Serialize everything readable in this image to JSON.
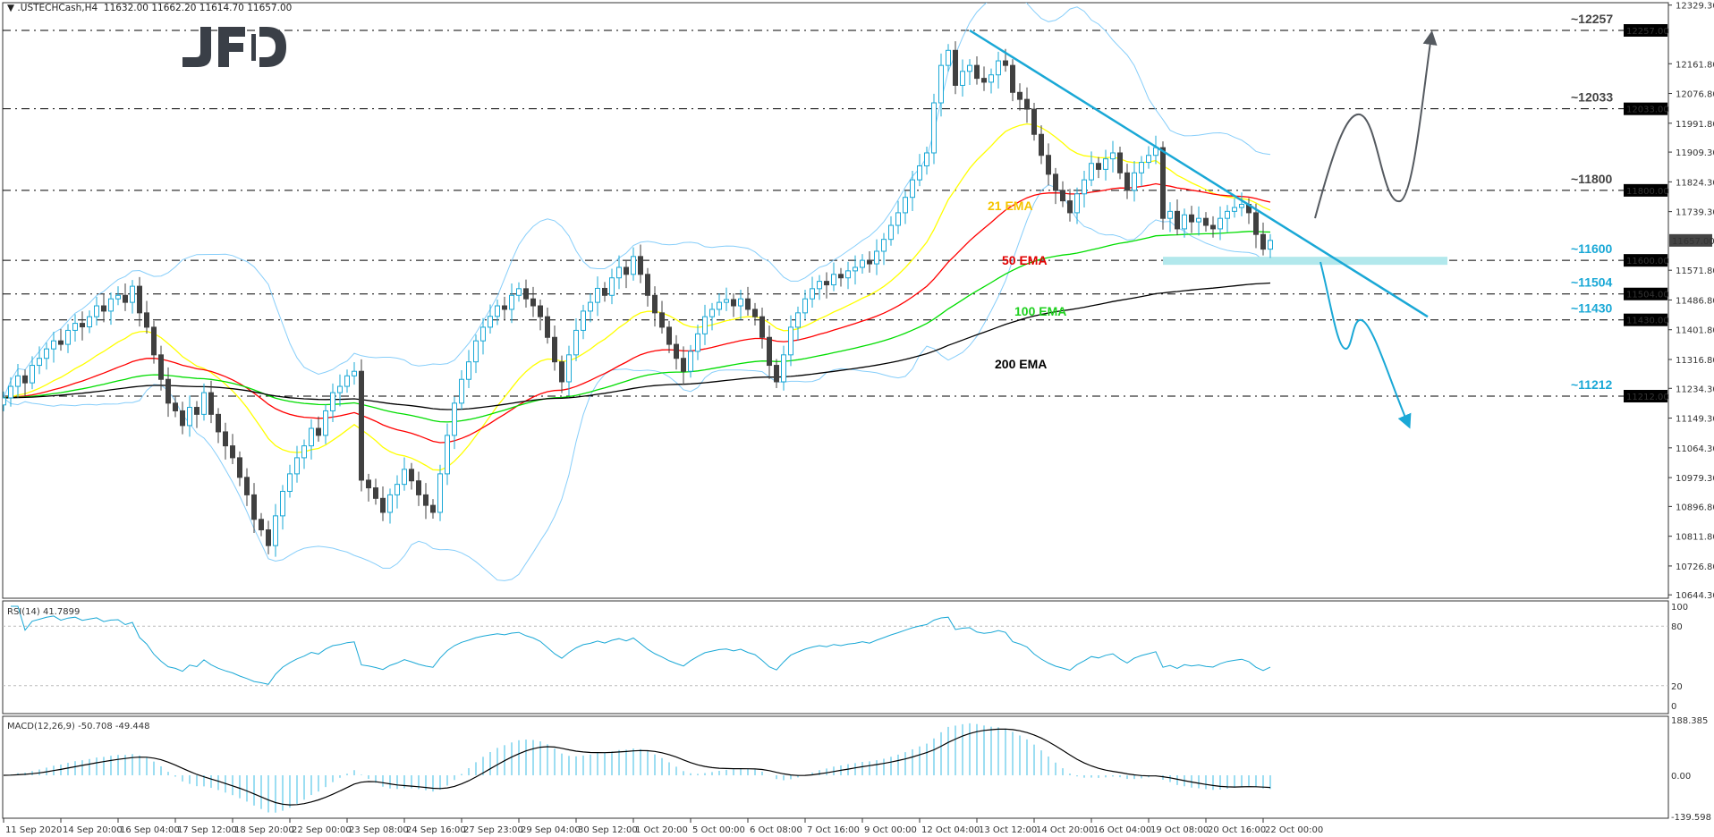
{
  "header": {
    "dropdown_icon": "triangle-down-icon",
    "symbol": ".USTECHCash,H4",
    "ohlc": "11632.00 11662.20 11614.70 11657.00"
  },
  "logo": {
    "text": "JFD",
    "color": "#3a3f47"
  },
  "colors": {
    "bull_stroke": "#1aa8d6",
    "bear_fill": "#404040",
    "bollinger": "#87cefa",
    "ema21": "#ffff00",
    "ema50": "#ff0000",
    "ema100": "#00dd00",
    "ema200": "#000000",
    "trendline": "#1aa8d6",
    "support_zone": "#b2e8ec",
    "level_line": "#000000",
    "up_scenario": "#555a60",
    "down_scenario": "#1aa8d6"
  },
  "chart_data": {
    "type": "candlestick",
    "timeframe": "H4",
    "x_tick_labels": [
      "11 Sep 2020",
      "14 Sep 20:00",
      "16 Sep 04:00",
      "17 Sep 12:00",
      "18 Sep 20:00",
      "22 Sep 00:00",
      "23 Sep 08:00",
      "24 Sep 16:00",
      "27 Sep 23:00",
      "29 Sep 04:00",
      "30 Sep 12:00",
      "1 Oct 20:00",
      "5 Oct 00:00",
      "6 Oct 08:00",
      "7 Oct 16:00",
      "9 Oct 00:00",
      "12 Oct 04:00",
      "13 Oct 12:00",
      "14 Oct 20:00",
      "16 Oct 04:00",
      "19 Oct 08:00",
      "20 Oct 16:00",
      "22 Oct 00:00"
    ],
    "price_axis_ticks": [
      "12329.30",
      "12161.80",
      "12076.80",
      "11991.80",
      "11909.30",
      "11824.30",
      "11739.30",
      "11571.80",
      "11486.80",
      "11401.80",
      "11316.80",
      "11234.30",
      "11149.30",
      "11064.30",
      "10979.30",
      "10896.80",
      "10811.80",
      "10726.80",
      "10644.30"
    ],
    "ylim": [
      10644.3,
      12329.3
    ],
    "closes": [
      11207,
      11240,
      11270,
      11250,
      11300,
      11320,
      11347,
      11370,
      11360,
      11400,
      11420,
      11410,
      11439,
      11470,
      11455,
      11490,
      11500,
      11480,
      11526,
      11450,
      11409,
      11330,
      11260,
      11192,
      11170,
      11128,
      11180,
      11160,
      11222,
      11160,
      11110,
      11070,
      11036,
      10980,
      10930,
      10860,
      10830,
      10785,
      10870,
      10940,
      10990,
      11036,
      11070,
      11120,
      11100,
      11170,
      11222,
      11240,
      11270,
      11283,
      10972,
      10950,
      10920,
      10880,
      10930,
      10960,
      11003,
      10970,
      10930,
      10900,
      10880,
      10990,
      11100,
      11192,
      11260,
      11310,
      11370,
      11409,
      11440,
      11470,
      11460,
      11500,
      11519,
      11490,
      11470,
      11439,
      11380,
      11310,
      11253,
      11330,
      11400,
      11455,
      11480,
      11520,
      11500,
      11550,
      11580,
      11560,
      11611,
      11560,
      11500,
      11450,
      11409,
      11360,
      11320,
      11283,
      11340,
      11390,
      11439,
      11460,
      11480,
      11488,
      11470,
      11490,
      11460,
      11439,
      11380,
      11300,
      11253,
      11330,
      11409,
      11450,
      11490,
      11519,
      11540,
      11530,
      11560,
      11550,
      11570,
      11580,
      11600,
      11590,
      11626,
      11660,
      11700,
      11736,
      11780,
      11830,
      11870,
      11907,
      12050,
      12157,
      12200,
      12100,
      12140,
      12157,
      12120,
      12109,
      12130,
      12170,
      12157,
      12080,
      12060,
      12032,
      11960,
      11900,
      11846,
      11800,
      11770,
      11736,
      11790,
      11830,
      11877,
      11860,
      11890,
      11907,
      11850,
      11800,
      11850,
      11880,
      11900,
      11922,
      11720,
      11740,
      11690,
      11730,
      11710,
      11720,
      11700,
      11690,
      11720,
      11740,
      11751,
      11760,
      11736,
      11674,
      11632,
      11657
    ],
    "current_price": {
      "value": 11657,
      "label": "11657.00"
    },
    "levels": [
      {
        "value": 12257,
        "axis_label": "12257.00",
        "annotation": "~12257"
      },
      {
        "value": 12033,
        "axis_label": "12033.00",
        "annotation": "~12033"
      },
      {
        "value": 11800,
        "axis_label": "11800.00",
        "annotation": "~11800"
      },
      {
        "value": 11600,
        "axis_label": "11600.00",
        "annotation": "~11600"
      },
      {
        "value": 11504,
        "axis_label": "11504.00",
        "annotation": "~11504"
      },
      {
        "value": 11430,
        "axis_label": "11430.00",
        "annotation": "~11430"
      },
      {
        "value": 11212,
        "axis_label": "11212.00",
        "annotation": "~11212"
      }
    ],
    "trendline": {
      "from": {
        "bar": 135,
        "price": 12257
      },
      "to": {
        "bar": 199,
        "price": 11439
      }
    },
    "support_zone": {
      "price": 11600
    },
    "indicator_labels": {
      "ema21": "21 EMA",
      "ema50": "50 EMA",
      "ema100": "100 EMA",
      "ema200": "200 EMA"
    },
    "rsi": {
      "label": "RSI(14) 41.7899",
      "period": 14,
      "ticks": [
        "100",
        "80",
        "20",
        "0"
      ],
      "levels": [
        80,
        20
      ]
    },
    "macd": {
      "label": "MACD(12,26,9) -50.708 -49.448",
      "fast": 12,
      "slow": 26,
      "signal": 9,
      "ticks": [
        "188.385",
        "0.00",
        "-139.598"
      ],
      "ylim": [
        -139.598,
        188.385
      ]
    }
  }
}
